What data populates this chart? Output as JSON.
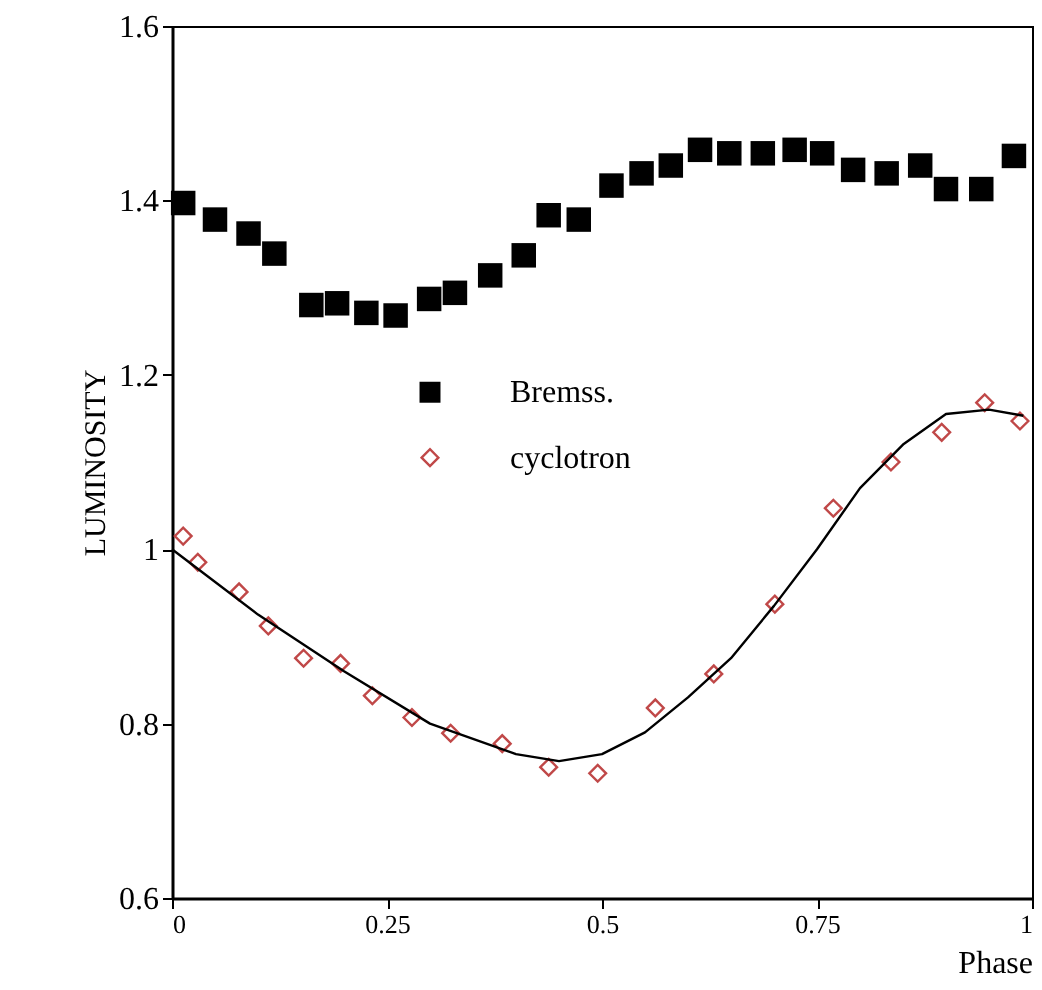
{
  "chart_data": {
    "type": "scatter",
    "xlabel": "Phase",
    "ylabel": "LUMINOSITY",
    "xlim": [
      0,
      1
    ],
    "ylim": [
      0.6,
      1.6
    ],
    "xticks": [
      0,
      0.25,
      0.5,
      0.75,
      1
    ],
    "yticks": [
      0.6,
      0.8,
      1,
      1.2,
      1.4,
      1.6
    ],
    "grid": false,
    "legend": "left",
    "series": [
      {
        "name": "Bremss.",
        "marker": "square",
        "color": "#000000",
        "x": [
          0.013,
          0.05,
          0.089,
          0.119,
          0.162,
          0.192,
          0.226,
          0.26,
          0.299,
          0.329,
          0.37,
          0.409,
          0.438,
          0.473,
          0.511,
          0.546,
          0.58,
          0.614,
          0.648,
          0.687,
          0.724,
          0.756,
          0.792,
          0.831,
          0.87,
          0.9,
          0.941,
          0.979
        ],
        "values": [
          1.397,
          1.378,
          1.362,
          1.339,
          1.28,
          1.282,
          1.271,
          1.268,
          1.287,
          1.294,
          1.314,
          1.337,
          1.383,
          1.378,
          1.417,
          1.431,
          1.44,
          1.458,
          1.454,
          1.454,
          1.458,
          1.454,
          1.435,
          1.431,
          1.44,
          1.413,
          1.413,
          1.451
        ]
      },
      {
        "name": "cyclotron",
        "marker": "diamond",
        "color": "#c04848",
        "x": [
          0.013,
          0.03,
          0.078,
          0.112,
          0.153,
          0.196,
          0.233,
          0.279,
          0.324,
          0.384,
          0.438,
          0.495,
          0.562,
          0.63,
          0.701,
          0.769,
          0.836,
          0.895,
          0.945,
          0.986
        ],
        "values": [
          1.015,
          0.985,
          0.951,
          0.912,
          0.875,
          0.869,
          0.832,
          0.807,
          0.789,
          0.777,
          0.75,
          0.743,
          0.818,
          0.857,
          0.937,
          1.047,
          1.1,
          1.134,
          1.168,
          1.147
        ]
      },
      {
        "type": "line",
        "line_style": "solid",
        "color": "#000000",
        "x": [
          0,
          0.1,
          0.2,
          0.3,
          0.4,
          0.45,
          0.5,
          0.55,
          0.6,
          0.65,
          0.7,
          0.75,
          0.8,
          0.85,
          0.9,
          0.95,
          0.99
        ],
        "values": [
          1.0,
          0.925,
          0.86,
          0.8,
          0.765,
          0.757,
          0.765,
          0.79,
          0.83,
          0.875,
          0.935,
          1.0,
          1.07,
          1.12,
          1.155,
          1.16,
          1.153
        ]
      }
    ]
  }
}
